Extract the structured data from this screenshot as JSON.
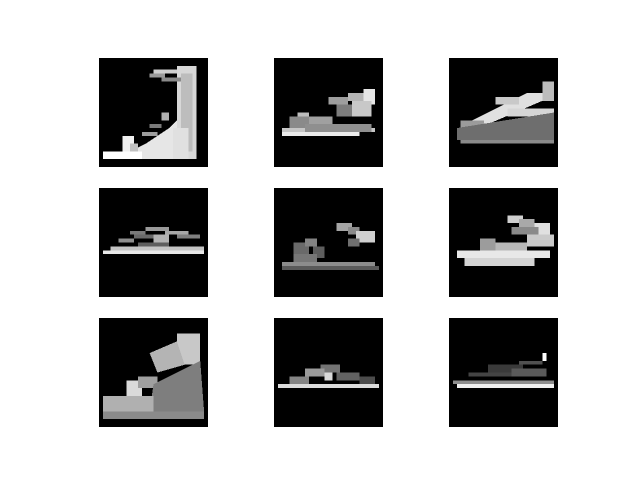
{
  "figure": {
    "background": "#ffffff",
    "tile_background": "#000000",
    "images": [
      {
        "subject": "high-heel-sandal",
        "palette": "grayscale"
      },
      {
        "subject": "wedge-sandal",
        "palette": "grayscale"
      },
      {
        "subject": "wedge-sandal",
        "palette": "grayscale"
      },
      {
        "subject": "flat-sandal",
        "palette": "grayscale"
      },
      {
        "subject": "strappy-sandal",
        "palette": "grayscale"
      },
      {
        "subject": "platform-sandal",
        "palette": "grayscale"
      },
      {
        "subject": "wedge-sandal",
        "palette": "grayscale"
      },
      {
        "subject": "slip-on-sneaker",
        "palette": "grayscale"
      },
      {
        "subject": "slip-on-sneaker",
        "palette": "grayscale"
      }
    ]
  }
}
